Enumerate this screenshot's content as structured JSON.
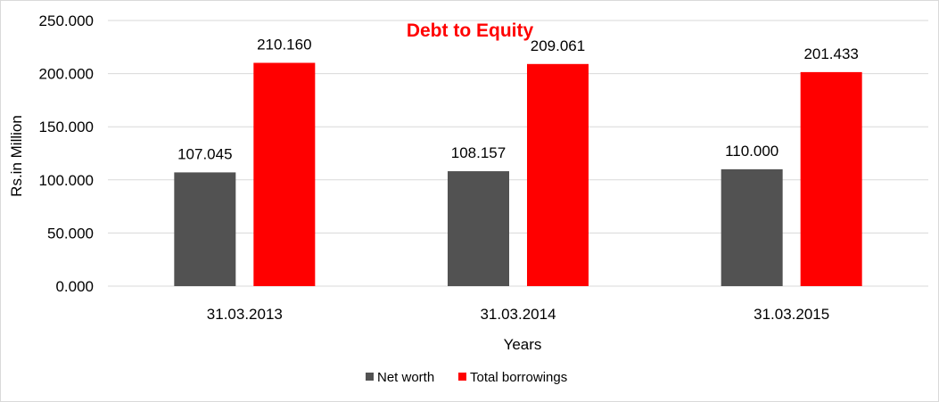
{
  "chart_data": {
    "type": "bar",
    "title": "Debt to Equity",
    "xlabel": "Years",
    "ylabel": "Rs.in Million",
    "categories": [
      "31.03.2013",
      "31.03.2014",
      "31.03.2015"
    ],
    "series": [
      {
        "name": "Net worth",
        "values": [
          107.045,
          108.157,
          110.0
        ],
        "labels": [
          "107.045",
          "108.157",
          "110.000"
        ],
        "color": "#525252"
      },
      {
        "name": "Total borrowings",
        "values": [
          210.16,
          209.061,
          201.433
        ],
        "labels": [
          "210.160",
          "209.061",
          "201.433"
        ],
        "color": "#ff0000"
      }
    ],
    "ylim": [
      0,
      250
    ],
    "yticks": [
      0,
      50,
      100,
      150,
      200,
      250
    ],
    "ytick_labels": [
      "0.000",
      "50.000",
      "100.000",
      "150.000",
      "200.000",
      "250.000"
    ],
    "grid": true,
    "legend_position": "bottom",
    "title_color": "#ff0000",
    "gridline_color": "#d9d9d9"
  }
}
